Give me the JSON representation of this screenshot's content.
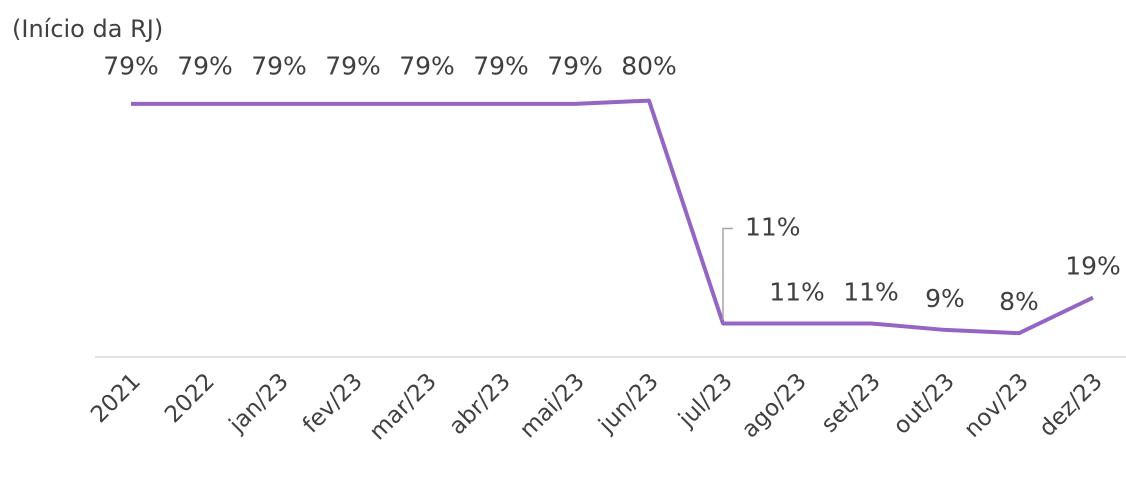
{
  "chart_data": {
    "type": "line",
    "subtitle": "(Início da RJ)",
    "categories": [
      "2021",
      "2022",
      "jan/23",
      "fev/23",
      "mar/23",
      "abr/23",
      "mai/23",
      "jun/23",
      "jul/23",
      "ago/23",
      "set/23",
      "out/23",
      "nov/23",
      "dez/23"
    ],
    "series": [
      {
        "name": null,
        "color": "#9565c4",
        "values": [
          79,
          79,
          79,
          79,
          79,
          79,
          79,
          80,
          11,
          11,
          11,
          9,
          8,
          19
        ],
        "value_labels": [
          "79%",
          "79%",
          "79%",
          "79%",
          "79%",
          "79%",
          "79%",
          "80%",
          "11%",
          "11%",
          "11%",
          "9%",
          "8%",
          "19%"
        ]
      }
    ],
    "ylim": [
      0,
      100
    ]
  }
}
